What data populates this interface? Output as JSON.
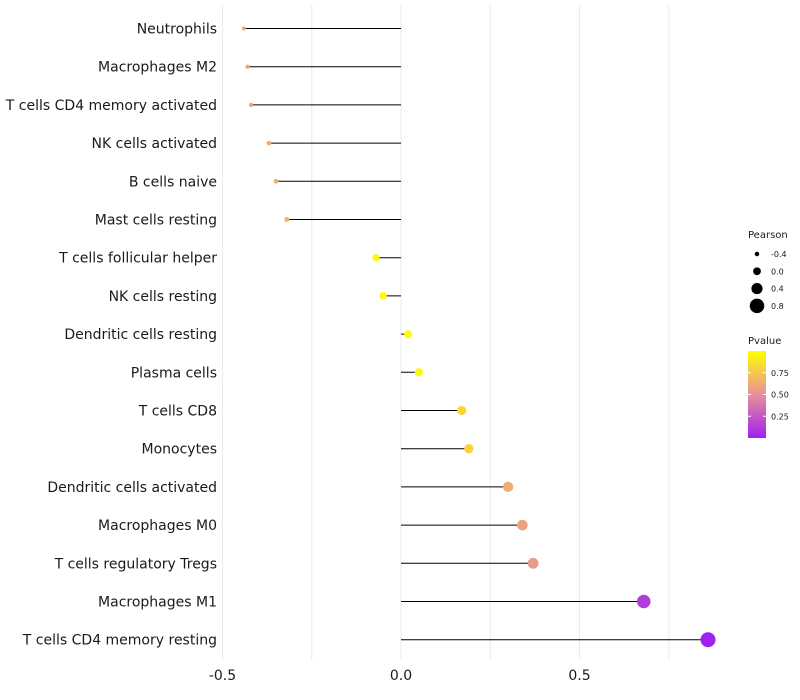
{
  "chart_data": {
    "type": "lollipop",
    "categories": [
      "Neutrophils",
      "Macrophages M2",
      "T cells CD4 memory activated",
      "NK cells activated",
      "B cells naive",
      "Mast cells resting",
      "T cells follicular helper",
      "NK cells resting",
      "Dendritic cells resting",
      "Plasma cells",
      "T cells CD8",
      "Monocytes",
      "Dendritic cells activated",
      "Macrophages M0",
      "T cells regulatory  Tregs",
      "Macrophages M1",
      "T cells CD4 memory resting"
    ],
    "pearson": [
      -0.44,
      -0.43,
      -0.42,
      -0.37,
      -0.35,
      -0.32,
      -0.07,
      -0.05,
      0.02,
      0.05,
      0.17,
      0.19,
      0.3,
      0.34,
      0.37,
      0.68,
      0.86
    ],
    "pvalue": [
      0.6,
      0.58,
      0.58,
      0.62,
      0.65,
      0.68,
      0.97,
      0.98,
      0.99,
      0.97,
      0.82,
      0.8,
      0.63,
      0.58,
      0.55,
      0.12,
      0.01
    ],
    "xlim": [
      -0.5,
      0.9
    ],
    "xticks": [
      -0.5,
      0.0,
      0.5
    ],
    "xtick_labels": [
      "-0.5",
      "0.0",
      "0.5"
    ],
    "grid": "vertical",
    "legend_size": {
      "title": "Pearson",
      "entries": [
        "-0.4",
        "0.0",
        "0.4",
        "0.8"
      ],
      "values": [
        -0.4,
        0.0,
        0.4,
        0.8
      ]
    },
    "legend_color": {
      "title": "Pvalue",
      "ticks": [
        "0.75",
        "0.50",
        "0.25"
      ],
      "tick_values": [
        0.75,
        0.5,
        0.25
      ],
      "range": [
        0.0,
        1.0
      ],
      "low_color": "#a020f0",
      "mid_color": "#e8909a",
      "high_color": "#ffff00"
    },
    "stem_color": "#000000",
    "grid_color": "#ebebeb"
  }
}
